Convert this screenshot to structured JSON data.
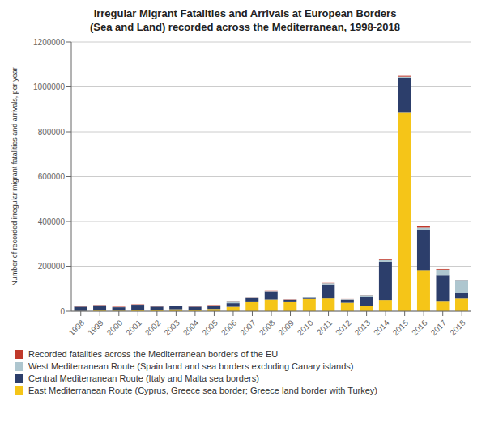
{
  "chart_data": {
    "type": "bar",
    "stacked": true,
    "title": "Irregular Migrant Fatalities and Arrivals at European Borders",
    "subtitle": "(Sea and Land) recorded across the Mediterranean, 1998-2018",
    "ylabel": "Number of recorded irregular migrant fatalities and arrivals, per year",
    "categories": [
      "1998",
      "1999",
      "2000",
      "2001",
      "2002",
      "2003",
      "2004",
      "2005",
      "2006",
      "2007",
      "2008",
      "2009",
      "2010",
      "2011",
      "2012",
      "2013",
      "2014",
      "2015",
      "2016",
      "2017",
      "2018"
    ],
    "series": [
      {
        "name": "Recorded fatalities across the Mediterranean borders of the EU",
        "color": "#c0392b",
        "values": [
          900,
          1200,
          1800,
          1500,
          700,
          600,
          900,
          1800,
          600,
          600,
          1500,
          1200,
          1500,
          1500,
          700,
          600,
          3500,
          3770,
          5100,
          3100,
          2300
        ]
      },
      {
        "name": "West Mediterranean Route (Spain land and sea borders excluding Canary islands)",
        "color": "#aec6cf",
        "values": [
          400,
          400,
          400,
          400,
          400,
          400,
          400,
          400,
          7000,
          2000,
          1500,
          1000,
          3500,
          5500,
          3000,
          6700,
          7800,
          7200,
          9300,
          23100,
          57034
        ]
      },
      {
        "name": "Central Mediterranean Route (Italy and Malta sea borders)",
        "color": "#2c3e6b",
        "values": [
          19000,
          23000,
          15000,
          23000,
          16000,
          14000,
          13000,
          15000,
          16000,
          18000,
          36000,
          11000,
          4500,
          63000,
          13200,
          40000,
          170000,
          154000,
          181400,
          119000,
          23000
        ]
      },
      {
        "name": "East Mediterranean Route (Cyprus, Greece sea border; Greece land border with Turkey)",
        "color": "#f5c518",
        "values": [
          1100,
          3200,
          2700,
          5700,
          4400,
          8600,
          7000,
          9700,
          19600,
          40000,
          52000,
          40000,
          55000,
          57000,
          37500,
          24800,
          50000,
          885000,
          182500,
          42305,
          56560
        ]
      }
    ],
    "ylim": [
      0,
      1200000
    ],
    "yticks": [
      0,
      200000,
      400000,
      600000,
      800000,
      1000000,
      1200000
    ],
    "grid": true,
    "legend": "bottom"
  }
}
